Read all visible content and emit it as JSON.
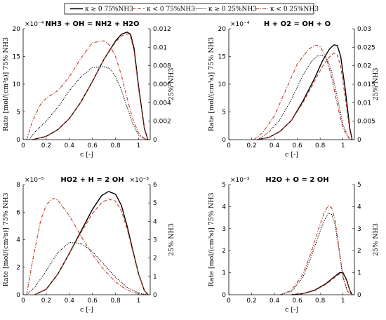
{
  "legend": {
    "entries": [
      "κ ≥ 0 75%NH3",
      "κ < 0 75%NH3",
      "κ ≥ 0 25%NH3",
      "κ < 0 25%NH3"
    ]
  },
  "series_styles": [
    {
      "color": "#000000",
      "dash": "",
      "width": 1.4
    },
    {
      "color": "#c0392b",
      "dash": "5,3",
      "width": 1.1
    },
    {
      "color": "#000000",
      "dash": "1.2,1.6",
      "width": 1.1
    },
    {
      "color": "#c0392b",
      "dash": "5,2,1.2,2",
      "width": 1.1
    }
  ],
  "chart_data": [
    {
      "type": "line",
      "title": "NH3 + OH = NH2 + H2O",
      "xlabel": "c [-]",
      "ylabel_left": "Rate [mol/(cm³s)] 75% NH3",
      "ylabel_right": "25% NH3",
      "xlim": [
        0,
        1.1
      ],
      "xticks": [
        0,
        0.2,
        0.4,
        0.6,
        0.8,
        1
      ],
      "ylim_left": [
        0,
        20
      ],
      "yticks_left": [
        0,
        5,
        10,
        15,
        20
      ],
      "exponent_left": "×10⁻⁴",
      "ylim_right": [
        0,
        0.012
      ],
      "yticks_right": [
        0,
        0.002,
        0.004,
        0.006,
        0.008,
        0.01,
        0.012
      ],
      "exponent_right": "",
      "series": [
        {
          "axis": "left",
          "x": [
            0.08,
            0.2,
            0.3,
            0.4,
            0.5,
            0.6,
            0.7,
            0.8,
            0.85,
            0.9,
            0.93,
            0.96,
            1.0,
            1.05,
            1.08
          ],
          "y": [
            0,
            0.6,
            1.8,
            3.8,
            6.8,
            10.5,
            14.5,
            17.8,
            19,
            19.4,
            19,
            16.5,
            9.5,
            2,
            0
          ]
        },
        {
          "axis": "left",
          "x": [
            0.08,
            0.2,
            0.3,
            0.4,
            0.5,
            0.6,
            0.7,
            0.8,
            0.85,
            0.9,
            0.93,
            0.96,
            1.0,
            1.05,
            1.08
          ],
          "y": [
            0,
            0.6,
            1.8,
            3.8,
            6.8,
            10.5,
            14.5,
            17.6,
            18.7,
            19.1,
            18.6,
            16,
            9,
            1.8,
            0
          ]
        },
        {
          "axis": "right",
          "x": [
            0.05,
            0.1,
            0.2,
            0.3,
            0.4,
            0.5,
            0.6,
            0.7,
            0.75,
            0.8,
            0.85,
            0.9,
            0.95,
            1.0,
            1.05,
            1.08
          ],
          "y": [
            0,
            0.0008,
            0.002,
            0.0035,
            0.0053,
            0.0068,
            0.0078,
            0.0079,
            0.0077,
            0.0068,
            0.0054,
            0.0035,
            0.0017,
            0.0005,
            0.0001,
            0
          ]
        },
        {
          "axis": "right",
          "x": [
            0.03,
            0.08,
            0.15,
            0.2,
            0.3,
            0.4,
            0.5,
            0.6,
            0.7,
            0.75,
            0.8,
            0.85,
            0.9,
            0.95,
            1.0,
            1.05,
            1.08
          ],
          "y": [
            0,
            0.002,
            0.0038,
            0.0045,
            0.0053,
            0.0068,
            0.0088,
            0.0105,
            0.0107,
            0.0102,
            0.009,
            0.007,
            0.0045,
            0.0022,
            0.0007,
            0.0001,
            0
          ]
        }
      ]
    },
    {
      "type": "line",
      "title": "H + O2 = OH + O",
      "xlabel": "c [-]",
      "ylabel_left": "Rate [mol/(cm³s)] 75% NH3",
      "ylabel_right": "25% NH3",
      "xlim": [
        0,
        1.1
      ],
      "xticks": [
        0,
        0.2,
        0.4,
        0.6,
        0.8,
        1
      ],
      "ylim_left": [
        0,
        20
      ],
      "yticks_left": [
        0,
        5,
        10,
        15,
        20
      ],
      "exponent_left": "×10⁻⁴",
      "ylim_right": [
        0,
        0.03
      ],
      "yticks_right": [
        0,
        0.005,
        0.01,
        0.015,
        0.02,
        0.025,
        0.03
      ],
      "exponent_right": "",
      "series": [
        {
          "axis": "left",
          "x": [
            0.25,
            0.35,
            0.45,
            0.55,
            0.65,
            0.75,
            0.82,
            0.88,
            0.92,
            0.95,
            0.98,
            1.02,
            1.06,
            1.08
          ],
          "y": [
            0,
            0.4,
            1.5,
            3.5,
            7,
            11,
            14.2,
            16.3,
            17.1,
            17,
            15,
            9,
            2,
            0
          ]
        },
        {
          "axis": "left",
          "x": [
            0.25,
            0.35,
            0.45,
            0.55,
            0.65,
            0.75,
            0.82,
            0.88,
            0.92,
            0.95,
            0.98,
            1.02,
            1.06,
            1.08
          ],
          "y": [
            0,
            0.4,
            1.5,
            3.5,
            6.7,
            10.5,
            13.2,
            14.9,
            15.6,
            15.3,
            13.2,
            7.5,
            1.5,
            0
          ]
        },
        {
          "axis": "right",
          "x": [
            0.25,
            0.35,
            0.45,
            0.55,
            0.65,
            0.72,
            0.78,
            0.82,
            0.86,
            0.9,
            0.95,
            1.0,
            1.05,
            1.08
          ],
          "y": [
            0,
            0.002,
            0.0055,
            0.011,
            0.0175,
            0.021,
            0.0228,
            0.0228,
            0.0218,
            0.0185,
            0.0115,
            0.004,
            0.0005,
            0
          ]
        },
        {
          "axis": "right",
          "x": [
            0.22,
            0.3,
            0.4,
            0.5,
            0.6,
            0.7,
            0.76,
            0.8,
            0.85,
            0.9,
            0.95,
            1.0,
            1.05,
            1.08
          ],
          "y": [
            0,
            0.002,
            0.0065,
            0.0135,
            0.0205,
            0.0245,
            0.0256,
            0.0252,
            0.0225,
            0.017,
            0.0095,
            0.003,
            0.0004,
            0
          ]
        }
      ]
    },
    {
      "type": "line",
      "title": "HO2 + H = 2 OH",
      "xlabel": "c [-]",
      "ylabel_left": "Rate [mol/(cm³s)] 75% NH3",
      "ylabel_right": "25% NH3",
      "xlim": [
        0,
        1.1
      ],
      "xticks": [
        0,
        0.2,
        0.4,
        0.6,
        0.8,
        1
      ],
      "ylim_left": [
        0,
        8
      ],
      "yticks_left": [
        0,
        2,
        4,
        6,
        8
      ],
      "exponent_left": "×10⁻⁵",
      "ylim_right": [
        0,
        6
      ],
      "yticks_right": [
        0,
        1,
        2,
        3,
        4,
        5,
        6
      ],
      "exponent_right": "×10⁻³",
      "series": [
        {
          "axis": "left",
          "x": [
            0.1,
            0.2,
            0.3,
            0.4,
            0.5,
            0.6,
            0.68,
            0.74,
            0.8,
            0.85,
            0.9,
            0.95,
            1.0,
            1.05,
            1.08
          ],
          "y": [
            0,
            0.4,
            1.5,
            3,
            4.6,
            6.2,
            7.2,
            7.5,
            7.3,
            6.5,
            5,
            3.2,
            1.5,
            0.3,
            0
          ]
        },
        {
          "axis": "left",
          "x": [
            0.1,
            0.2,
            0.3,
            0.4,
            0.5,
            0.6,
            0.68,
            0.74,
            0.8,
            0.85,
            0.9,
            0.95,
            1.0,
            1.05,
            1.08
          ],
          "y": [
            0,
            0.4,
            1.5,
            3,
            4.5,
            5.9,
            6.7,
            6.95,
            6.8,
            6.1,
            4.8,
            3.1,
            1.5,
            0.3,
            0
          ]
        },
        {
          "axis": "right",
          "x": [
            0.03,
            0.1,
            0.2,
            0.3,
            0.4,
            0.5,
            0.6,
            0.7,
            0.8,
            0.9,
            1.0,
            1.05,
            1.08
          ],
          "y": [
            0,
            0.4,
            1.3,
            2.3,
            2.85,
            2.8,
            2.35,
            1.65,
            0.95,
            0.4,
            0.1,
            0.02,
            0
          ]
        },
        {
          "axis": "right",
          "x": [
            0.03,
            0.08,
            0.15,
            0.2,
            0.26,
            0.3,
            0.4,
            0.5,
            0.6,
            0.7,
            0.8,
            0.9,
            1.0,
            1.05,
            1.08
          ],
          "y": [
            0,
            1.8,
            4,
            4.9,
            5.25,
            5.15,
            4.3,
            3.2,
            2.2,
            1.35,
            0.7,
            0.25,
            0.05,
            0.01,
            0
          ]
        }
      ]
    },
    {
      "type": "line",
      "title": "H2O + O = 2 OH",
      "xlabel": "c [-]",
      "ylabel_left": "Rate [mol/(cm³s)] 75% NH3",
      "ylabel_right": "25% NH3",
      "xlim": [
        0,
        1.1
      ],
      "xticks": [
        0,
        0.2,
        0.4,
        0.6,
        0.8,
        1
      ],
      "ylim_left": [
        0,
        5
      ],
      "yticks_left": [
        0,
        1,
        2,
        3,
        4,
        5
      ],
      "exponent_left": "×10⁻³",
      "ylim_right": [
        0,
        5
      ],
      "yticks_right": [
        0,
        1,
        2,
        3,
        4,
        5
      ],
      "exponent_right": "",
      "series": [
        {
          "axis": "left",
          "x": [
            0.55,
            0.65,
            0.75,
            0.85,
            0.92,
            0.97,
            1.0,
            1.03,
            1.06,
            1.08
          ],
          "y": [
            0,
            0.05,
            0.2,
            0.5,
            0.8,
            1,
            1,
            0.7,
            0.2,
            0
          ]
        },
        {
          "axis": "left",
          "x": [
            0.55,
            0.65,
            0.75,
            0.85,
            0.92,
            0.97,
            1.0,
            1.03,
            1.06,
            1.08
          ],
          "y": [
            0,
            0.05,
            0.18,
            0.47,
            0.75,
            0.95,
            0.95,
            0.65,
            0.18,
            0
          ]
        },
        {
          "axis": "right",
          "x": [
            0.45,
            0.55,
            0.65,
            0.72,
            0.78,
            0.83,
            0.87,
            0.9,
            0.93,
            0.96,
            1.0,
            1.04,
            1.08
          ],
          "y": [
            0,
            0.15,
            0.8,
            1.7,
            2.6,
            3.3,
            3.7,
            3.65,
            3.2,
            2.2,
            0.8,
            0.15,
            0
          ]
        },
        {
          "axis": "right",
          "x": [
            0.45,
            0.55,
            0.65,
            0.72,
            0.78,
            0.83,
            0.87,
            0.9,
            0.93,
            0.96,
            1.0,
            1.04,
            1.08
          ],
          "y": [
            0,
            0.2,
            0.95,
            1.9,
            2.9,
            3.65,
            4.05,
            3.95,
            3.4,
            2.3,
            0.8,
            0.15,
            0
          ]
        }
      ]
    }
  ]
}
